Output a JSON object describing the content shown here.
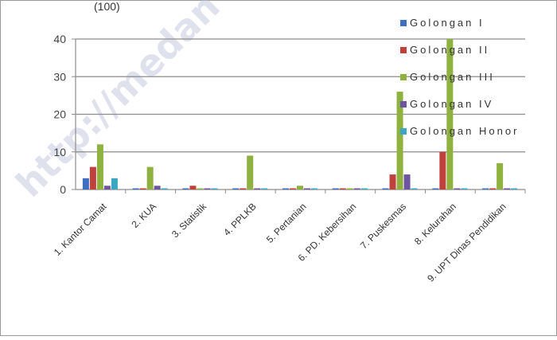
{
  "chart_data": {
    "type": "bar",
    "title_fragment": "(100)",
    "categories": [
      "1. Kantor Camat",
      "2. KUA",
      "3. Statistik",
      "4. PPLKB",
      "5. Pertanian",
      "6. PD. Kebersihan",
      "7. Puskesmas",
      "8. Kelurahan",
      "9. UPT Dinas Pendidikan"
    ],
    "series": [
      {
        "name": "Golongan I",
        "color": "#3f6fc0",
        "values": [
          3,
          0,
          0,
          0,
          0,
          0,
          0,
          0,
          0
        ]
      },
      {
        "name": "Golongan II",
        "color": "#c0403c",
        "values": [
          6,
          0,
          1,
          0,
          0,
          0,
          4,
          10,
          0
        ]
      },
      {
        "name": "Golongan III",
        "color": "#8fb13f",
        "values": [
          12,
          6,
          0,
          9,
          1,
          0,
          26,
          40,
          7
        ]
      },
      {
        "name": "Golongan IV",
        "color": "#6e55a0",
        "values": [
          1,
          1,
          0,
          0,
          0,
          0,
          4,
          0,
          0
        ]
      },
      {
        "name": "Golongan Honor",
        "color": "#3aa6bf",
        "values": [
          3,
          0,
          0,
          0,
          0,
          0,
          0,
          0,
          0
        ]
      }
    ],
    "ylim": [
      0,
      40
    ],
    "yticks": [
      0,
      10,
      20,
      30,
      40
    ],
    "grid": true,
    "legend_position": "right",
    "watermark": "http://medan"
  }
}
